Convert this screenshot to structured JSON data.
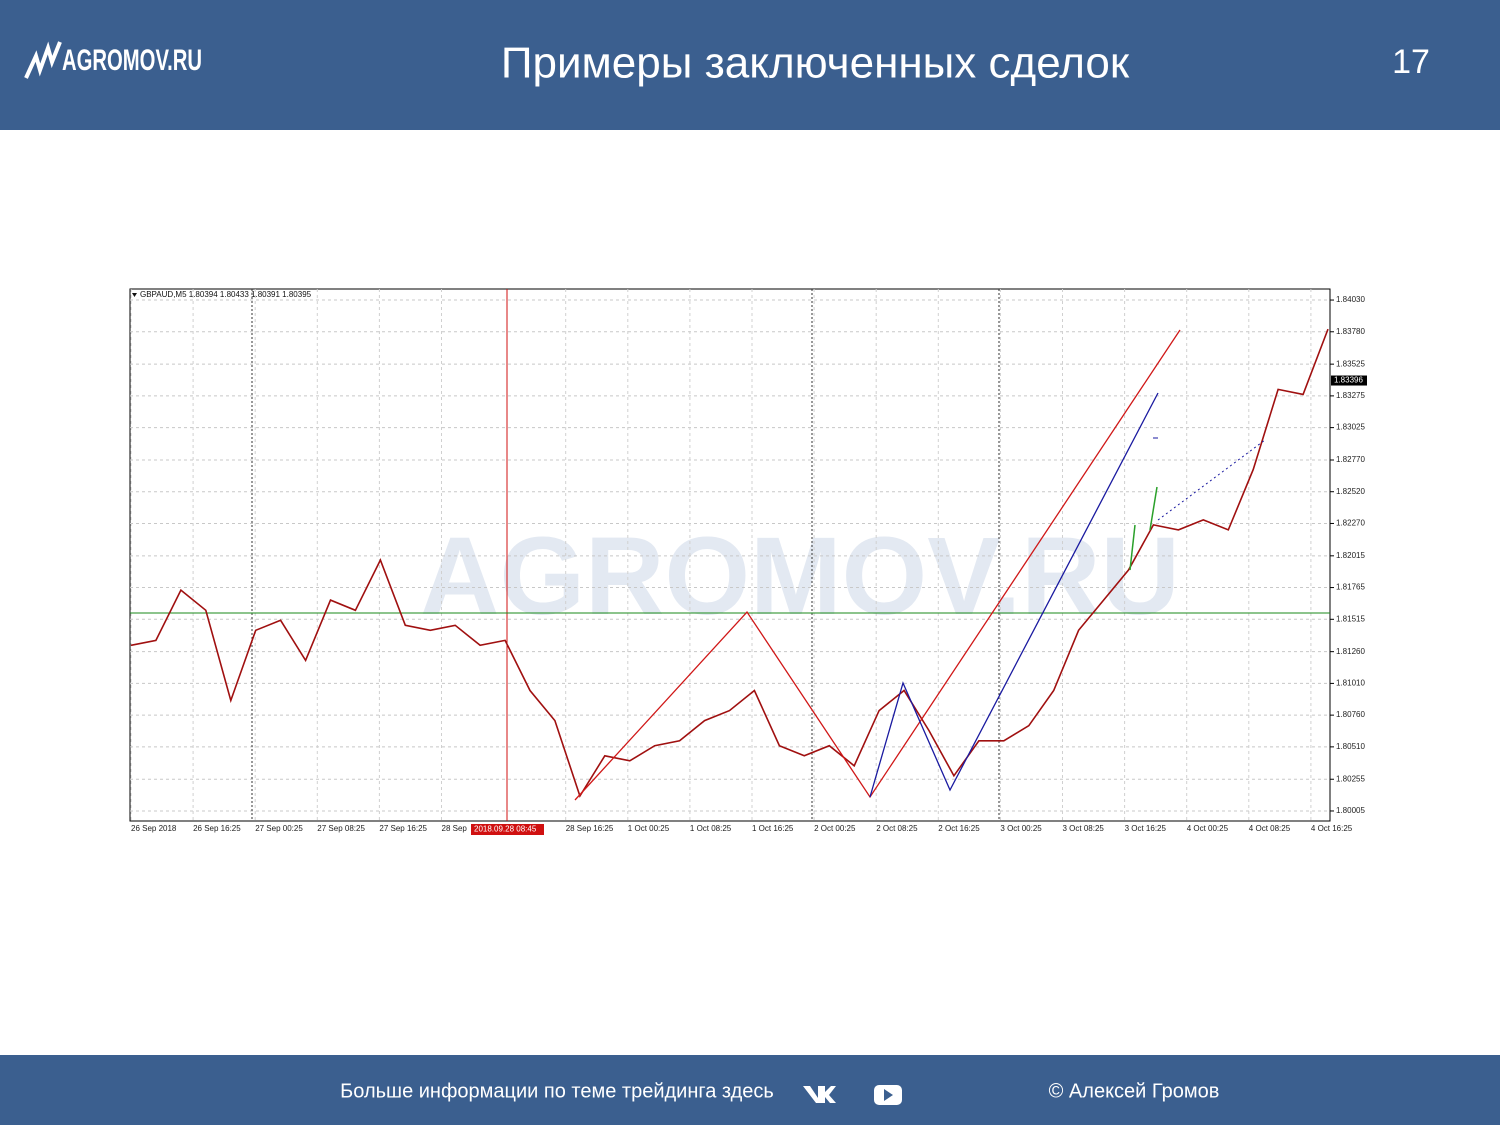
{
  "header": {
    "logo": "AGROMOV.RU",
    "title": "Примеры заключенных сделок",
    "page_number": "17"
  },
  "chart_data": {
    "type": "line",
    "legend_text": "GBPAUD,M5  1.80394 1.80433 1.80391 1.80395",
    "watermark": "AGROMOV.RU",
    "color": "#a01010",
    "values": [
      1.8131,
      1.81349,
      1.81745,
      1.81586,
      1.80875,
      1.81428,
      1.81507,
      1.81191,
      1.81666,
      1.81586,
      1.81982,
      1.81468,
      1.81428,
      1.81468,
      1.8131,
      1.81349,
      1.80954,
      1.80717,
      1.80123,
      1.8044,
      1.804,
      1.80519,
      1.80558,
      1.80717,
      1.80796,
      1.80954,
      1.80519,
      1.8044,
      1.80519,
      1.80361,
      1.80796,
      1.80954,
      1.80638,
      1.80282,
      1.80558,
      1.80558,
      1.80677,
      1.80954,
      1.81428,
      1.81666,
      1.81903,
      1.82259,
      1.82219,
      1.82298,
      1.82219,
      1.82694,
      1.83326,
      1.83287,
      1.83801
    ],
    "ylim": [
      1.79926,
      1.84117
    ],
    "yticks": [
      {
        "value": 1.8403,
        "label": "1.84030"
      },
      {
        "value": 1.8378,
        "label": "1.83780"
      },
      {
        "value": 1.83525,
        "label": "1.83525"
      },
      {
        "value": 1.83275,
        "label": "1.83275"
      },
      {
        "value": 1.83025,
        "label": "1.83025"
      },
      {
        "value": 1.8277,
        "label": "1.82770"
      },
      {
        "value": 1.8252,
        "label": "1.82520"
      },
      {
        "value": 1.8227,
        "label": "1.82270"
      },
      {
        "value": 1.82015,
        "label": "1.82015"
      },
      {
        "value": 1.81765,
        "label": "1.81765"
      },
      {
        "value": 1.81515,
        "label": "1.81515"
      },
      {
        "value": 1.8126,
        "label": "1.81260"
      },
      {
        "value": 1.8101,
        "label": "1.81010"
      },
      {
        "value": 1.8076,
        "label": "1.80760"
      },
      {
        "value": 1.8051,
        "label": "1.80510"
      },
      {
        "value": 1.80255,
        "label": "1.80255"
      },
      {
        "value": 1.80005,
        "label": "1.80005"
      }
    ],
    "current_price": {
      "value": 1.83396,
      "label": "1.83396"
    },
    "time_labels": [
      "26 Sep 2018",
      "26 Sep 16:25",
      "27 Sep 00:25",
      "27 Sep 08:25",
      "27 Sep 16:25",
      "28 Sep",
      "28 Sep 16:25",
      "1 Oct 00:25",
      "1 Oct 08:25",
      "1 Oct 16:25",
      "2 Oct 00:25",
      "2 Oct 08:25",
      "2 Oct 16:25",
      "3 Oct 00:25",
      "3 Oct 08:25",
      "3 Oct 16:25",
      "4 Oct 00:25",
      "4 Oct 08:25",
      "4 Oct 16:25"
    ],
    "cursor_time": "2018.09.28 08:45",
    "grid": true
  },
  "footer": {
    "text": "Больше информации по теме трейдинга здесь",
    "copyright": "© Алексей Громов"
  }
}
